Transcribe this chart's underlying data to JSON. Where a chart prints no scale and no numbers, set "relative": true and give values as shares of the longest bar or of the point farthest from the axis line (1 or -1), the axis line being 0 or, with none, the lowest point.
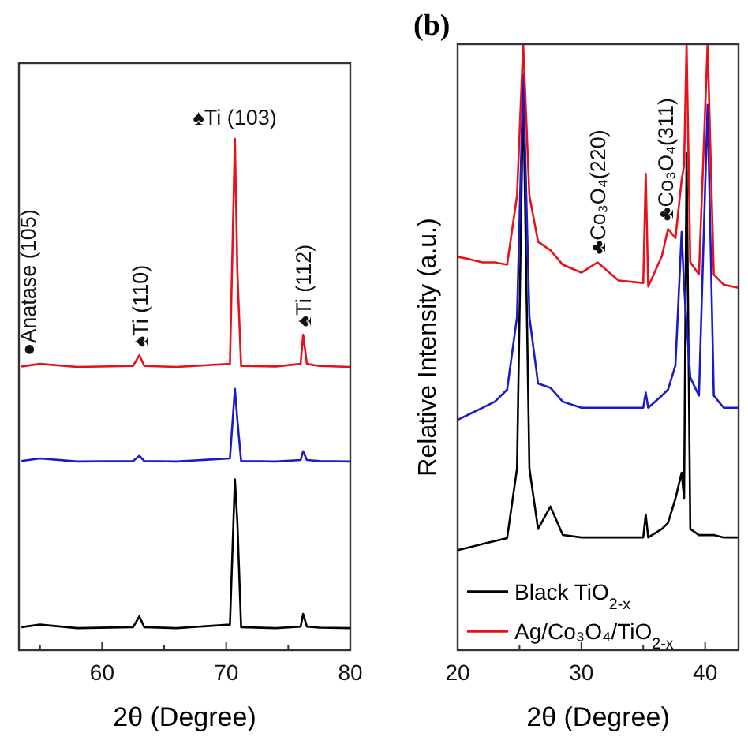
{
  "chart_data": [
    {
      "type": "line",
      "relative": true,
      "xlabel": "2θ (Degree)",
      "xlim": [
        53.3,
        80
      ],
      "xticks": [
        {
          "value": 55,
          "label": null
        },
        60,
        {
          "value": 65,
          "label": null
        },
        70,
        {
          "value": 75,
          "label": null
        },
        80
      ],
      "line_style": "solid",
      "marker": "none",
      "legend": false,
      "grid": false,
      "annotations": [
        {
          "text": "●Anatase (105)",
          "x": 54,
          "y": 0.56
        },
        {
          "text": "♠Ti (110)",
          "x": 63,
          "y": 0.577
        },
        {
          "text": "♠Ti (103)",
          "x": 70.7,
          "y": 1
        },
        {
          "text": "♠Ti (112)",
          "x": 76.2,
          "y": 0.617
        }
      ],
      "series": [
        {
          "color": "#000000",
          "x": [
            53.5,
            55,
            58,
            62.5,
            63,
            63.4,
            66,
            70.3,
            70.7,
            70.9,
            71.2,
            74,
            76,
            76.2,
            76.5,
            77.5,
            80
          ],
          "values": [
            0.045,
            0.05,
            0.043,
            0.045,
            0.066,
            0.045,
            0.043,
            0.05,
            0.334,
            0.25,
            0.045,
            0.043,
            0.046,
            0.071,
            0.046,
            0.044,
            0.043
          ]
        },
        {
          "color": "#1a1ac8",
          "x": [
            53.5,
            55,
            58,
            62.5,
            63,
            63.4,
            66,
            70.3,
            70.7,
            70.9,
            71.2,
            74,
            76,
            76.2,
            76.5,
            77.5,
            80
          ],
          "values": [
            0.37,
            0.375,
            0.369,
            0.37,
            0.38,
            0.37,
            0.369,
            0.375,
            0.511,
            0.45,
            0.37,
            0.369,
            0.372,
            0.389,
            0.372,
            0.37,
            0.369
          ]
        },
        {
          "color": "#e8101a",
          "x": [
            53.5,
            55,
            58,
            62.5,
            63,
            63.4,
            66,
            70.3,
            70.7,
            70.9,
            71.2,
            74,
            76,
            76.2,
            76.5,
            77.5,
            80
          ],
          "values": [
            0.555,
            0.56,
            0.554,
            0.556,
            0.577,
            0.556,
            0.554,
            0.56,
            1,
            0.74,
            0.556,
            0.555,
            0.56,
            0.617,
            0.56,
            0.556,
            0.554
          ]
        }
      ]
    },
    {
      "type": "line",
      "relative": true,
      "title": "(b)",
      "xlabel": "2θ (Degree)",
      "ylabel": "Relative Intensity (a.u.)",
      "xlim": [
        20,
        42.7
      ],
      "xticks": [
        20,
        {
          "value": 25,
          "label": null
        },
        30,
        {
          "value": 35,
          "label": null
        },
        40
      ],
      "line_style": "solid",
      "marker": "none",
      "legend": "bottom left",
      "grid": false,
      "annotations": [
        {
          "text": "♣Co₃O₄(220)",
          "x": 31.3,
          "y": 0.64
        },
        {
          "text": "♣Co₃O₄(311)",
          "x": 36.8,
          "y": 0.695
        }
      ],
      "series": [
        {
          "name": "Black TiO$_{2-x}$",
          "color": "#000000",
          "x": [
            20,
            21,
            22,
            23,
            24,
            24.8,
            25.3,
            25.8,
            26.5,
            27.5,
            28.5,
            30,
            31.3,
            33,
            35,
            35.2,
            35.4,
            36.5,
            37,
            37.6,
            38.1,
            38.3,
            38.5,
            38.8,
            39.5,
            40.2,
            40.7,
            41.5,
            42.7
          ],
          "values": [
            0.165,
            0.17,
            0.175,
            0.18,
            0.185,
            0.3,
            0.93,
            0.3,
            0.2,
            0.237,
            0.19,
            0.186,
            0.186,
            0.186,
            0.186,
            0.224,
            0.186,
            0.2,
            0.21,
            0.25,
            0.293,
            0.25,
            0.82,
            0.2,
            0.19,
            null,
            0.19,
            0.186,
            0.186
          ]
        },
        {
          "color": "#1a1ac8",
          "x": [
            20,
            21,
            22,
            23,
            24,
            24.8,
            25.3,
            25.8,
            26.5,
            27.5,
            28.5,
            30,
            31.3,
            33,
            35,
            35.2,
            35.4,
            36.5,
            37,
            37.6,
            38.1,
            38.3,
            38.5,
            38.8,
            39.5,
            40.2,
            40.7,
            41.5,
            42.7
          ],
          "values": [
            0.38,
            0.39,
            0.4,
            0.41,
            0.43,
            0.55,
            0.95,
            0.55,
            0.44,
            0.433,
            0.41,
            0.4,
            0.4,
            0.4,
            0.4,
            0.425,
            0.4,
            0.42,
            0.43,
            0.47,
            0.69,
            0.6,
            null,
            0.45,
            0.42,
            0.9,
            0.42,
            0.4,
            0.4
          ]
        },
        {
          "name": "Ag/Co₃O₄/TiO$_{2-x}$",
          "color": "#e8101a",
          "x": [
            20,
            21,
            22,
            23,
            24,
            24.8,
            25.3,
            25.8,
            26.5,
            27.5,
            28.5,
            30,
            31.3,
            33,
            35,
            35.2,
            35.4,
            36.5,
            37,
            37.6,
            38.1,
            38.3,
            38.5,
            38.8,
            39.5,
            40.2,
            40.7,
            41.5,
            42.7
          ],
          "values": [
            0.649,
            0.645,
            0.64,
            0.64,
            0.636,
            0.75,
            1,
            0.75,
            0.674,
            0.66,
            0.636,
            0.623,
            0.64,
            0.61,
            0.606,
            0.786,
            0.6,
            0.65,
            0.695,
            0.68,
            0.776,
            0.8,
            1,
            0.64,
            0.62,
            1,
            0.62,
            0.603,
            0.598
          ]
        }
      ]
    }
  ]
}
